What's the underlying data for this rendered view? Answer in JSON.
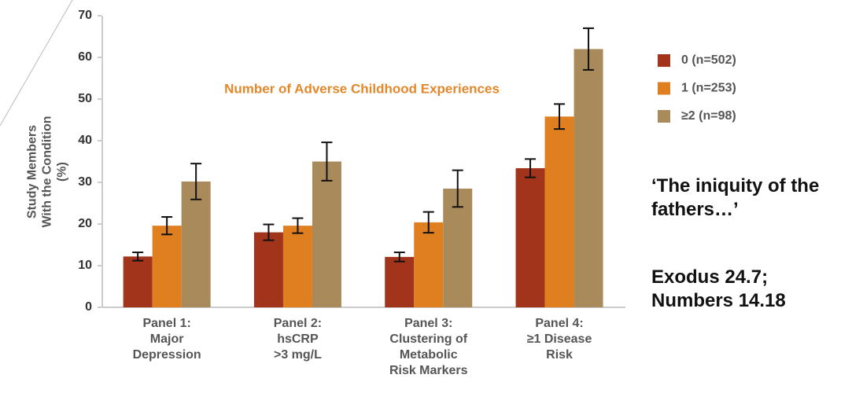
{
  "chart_data": {
    "type": "bar",
    "annotation": "Number of Adverse Childhood Experiences",
    "ylabel": "Study Members\nWith the Condition (%)",
    "side_text": [
      "‘The iniquity of the fathers…’",
      "Exodus 24.7;\nNumbers 14.18"
    ],
    "categories": [
      "Panel 1:\nMajor\nDepression",
      "Panel 2:\nhsCRP\n>3 mg/L",
      "Panel 3:\nClustering of\nMetabolic\nRisk Markers",
      "Panel 4:\n≥1 Disease\nRisk"
    ],
    "series": [
      {
        "name": "0 (n=502)",
        "color": "#a1341b",
        "values": [
          12.2,
          18,
          12.1,
          33.4
        ],
        "errors": [
          1,
          1.9,
          1.1,
          2.2
        ]
      },
      {
        "name": "1 (n=253)",
        "color": "#e07f1f",
        "values": [
          19.6,
          19.6,
          20.4,
          45.8
        ],
        "errors": [
          2.1,
          1.8,
          2.5,
          3
        ]
      },
      {
        "name": "≥2 (n=98)",
        "color": "#a98b5b",
        "values": [
          30.2,
          35,
          28.5,
          62
        ],
        "errors": [
          4.3,
          4.6,
          4.4,
          5
        ]
      }
    ],
    "ylim": [
      0,
      70
    ],
    "yticks": [
      0,
      10,
      20,
      30,
      40,
      50,
      60,
      70
    ]
  }
}
